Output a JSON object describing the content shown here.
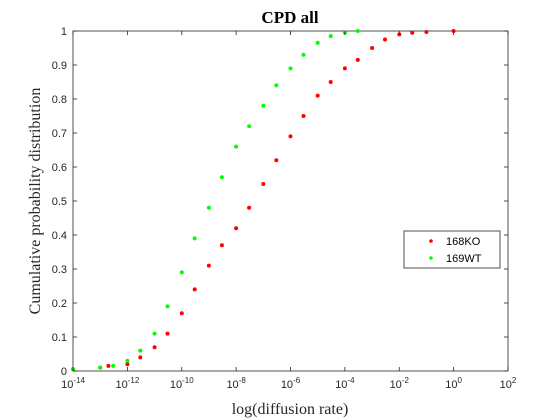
{
  "chart_data": {
    "type": "scatter",
    "title": "CPD all",
    "xlabel": "log(diffusion rate)",
    "ylabel": "Cumulative probability distribution",
    "x_scale": "log10",
    "xlim": [
      1e-14,
      100
    ],
    "ylim": [
      0,
      1
    ],
    "x_ticks": [
      {
        "base": "10",
        "exp": "-14"
      },
      {
        "base": "10",
        "exp": "-12"
      },
      {
        "base": "10",
        "exp": "-10"
      },
      {
        "base": "10",
        "exp": "-8"
      },
      {
        "base": "10",
        "exp": "-6"
      },
      {
        "base": "10",
        "exp": "-4"
      },
      {
        "base": "10",
        "exp": "-2"
      },
      {
        "base": "10",
        "exp": "0"
      },
      {
        "base": "10",
        "exp": "2"
      }
    ],
    "y_ticks": [
      "0",
      "0.1",
      "0.2",
      "0.3",
      "0.4",
      "0.5",
      "0.6",
      "0.7",
      "0.8",
      "0.9",
      "1"
    ],
    "grid": false,
    "legend_position": "right",
    "series": [
      {
        "name": "168KO",
        "color": "#ff0000",
        "x": [
          1e-14,
          1e-13,
          2e-13,
          1e-12,
          3e-12,
          1e-11,
          3e-11,
          1e-10,
          3e-10,
          1e-09,
          3e-09,
          1e-08,
          3e-08,
          1e-07,
          3e-07,
          1e-06,
          3e-06,
          1e-05,
          3e-05,
          0.0001,
          0.0003,
          0.001,
          0.003,
          0.01,
          0.03,
          0.1,
          1
        ],
        "y": [
          0.005,
          0.01,
          0.015,
          0.02,
          0.04,
          0.07,
          0.11,
          0.17,
          0.24,
          0.31,
          0.37,
          0.42,
          0.48,
          0.55,
          0.62,
          0.69,
          0.75,
          0.81,
          0.85,
          0.89,
          0.915,
          0.95,
          0.975,
          0.99,
          0.995,
          0.997,
          1.0
        ]
      },
      {
        "name": "169WT",
        "color": "#00ff00",
        "x": [
          1e-14,
          1e-13,
          3e-13,
          1e-12,
          3e-12,
          1e-11,
          3e-11,
          1e-10,
          3e-10,
          1e-09,
          3e-09,
          1e-08,
          3e-08,
          1e-07,
          3e-07,
          1e-06,
          3e-06,
          1e-05,
          3e-05,
          0.0001,
          0.0003
        ],
        "y": [
          0.005,
          0.01,
          0.015,
          0.03,
          0.06,
          0.11,
          0.19,
          0.29,
          0.39,
          0.48,
          0.57,
          0.66,
          0.72,
          0.78,
          0.84,
          0.89,
          0.93,
          0.965,
          0.985,
          0.995,
          1.0
        ]
      }
    ]
  }
}
